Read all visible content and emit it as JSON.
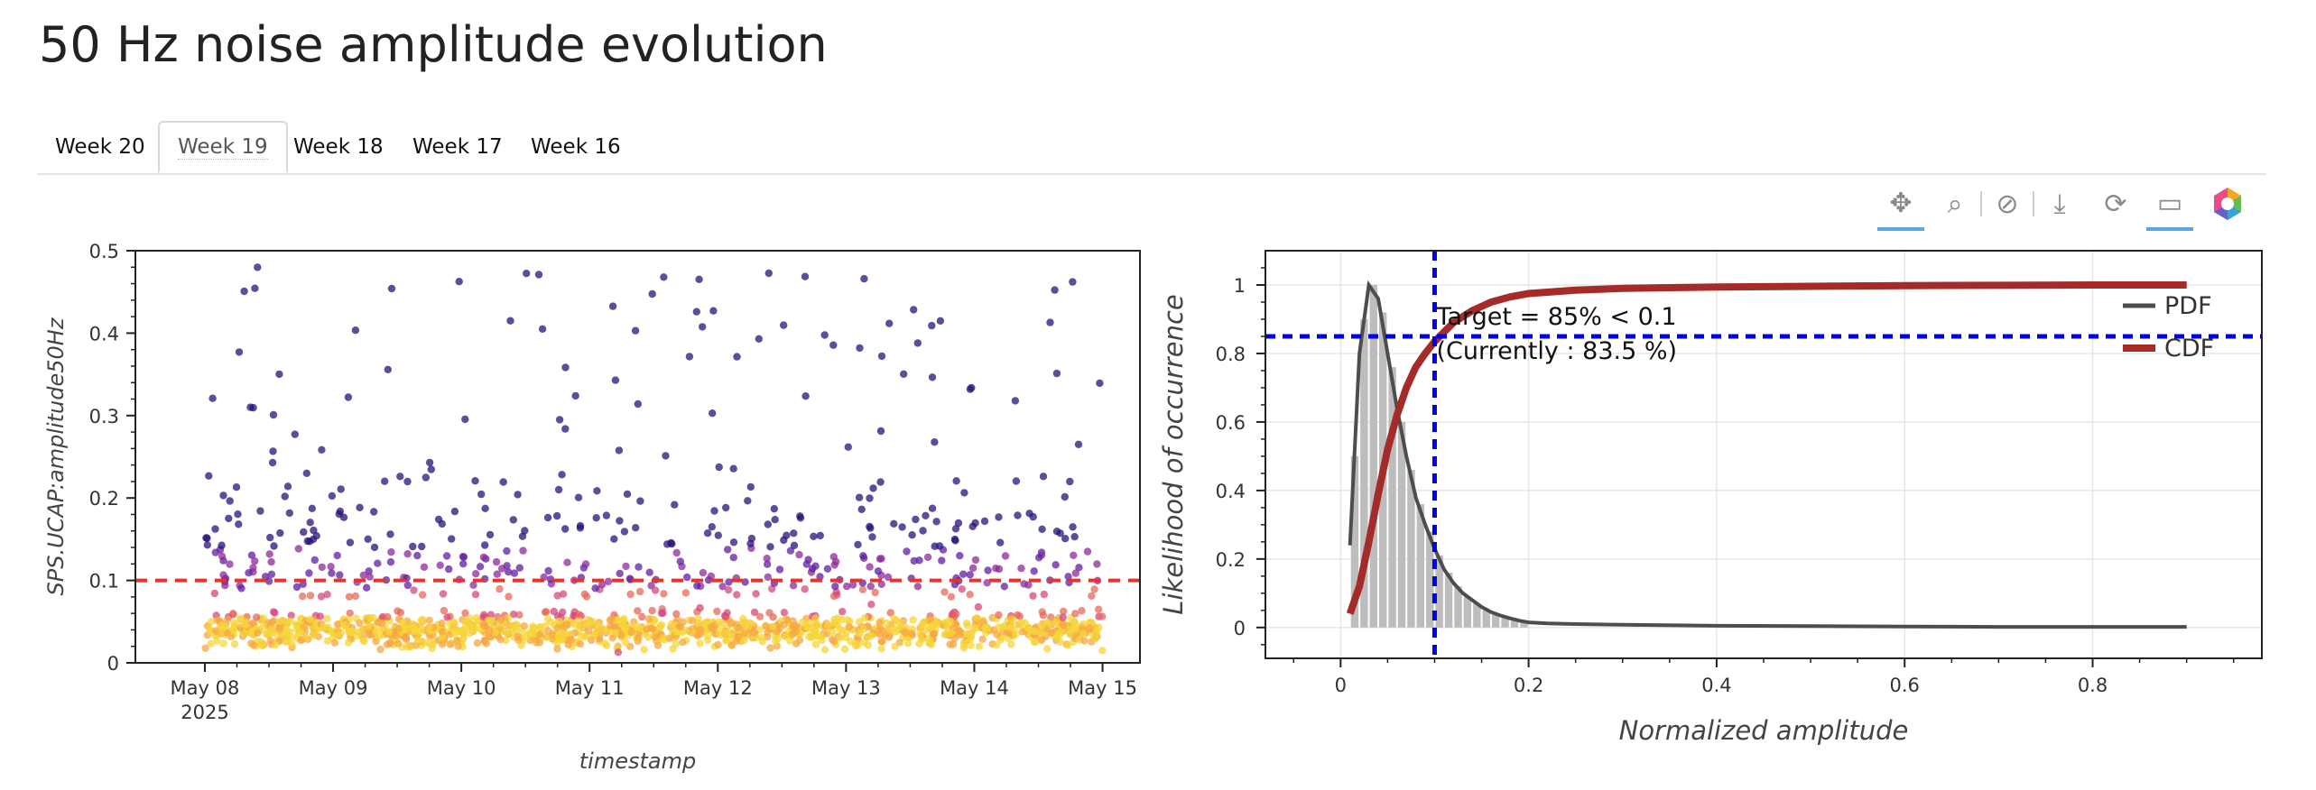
{
  "page": {
    "title": "50 Hz noise amplitude evolution"
  },
  "tabs": [
    {
      "label": "Week 20",
      "active": false
    },
    {
      "label": "Week 19",
      "active": true
    },
    {
      "label": "Week 18",
      "active": false
    },
    {
      "label": "Week 17",
      "active": false
    },
    {
      "label": "Week 16",
      "active": false
    }
  ],
  "toolbar": {
    "tools": [
      {
        "icon": "pan-icon",
        "glyph": "✥",
        "active": true
      },
      {
        "icon": "box-zoom-icon",
        "glyph": "⌕",
        "active": false
      },
      {
        "icon": "wheel-zoom-icon",
        "glyph": "⊘",
        "active": false
      },
      {
        "icon": "save-icon",
        "glyph": "⤓",
        "active": false
      },
      {
        "icon": "reset-icon",
        "glyph": "⟳",
        "active": false
      },
      {
        "icon": "hover-icon",
        "glyph": "▭",
        "active": true
      },
      {
        "icon": "bokeh-logo-icon",
        "glyph": "",
        "active": false
      }
    ]
  },
  "chart_data": [
    {
      "type": "scatter",
      "title": "",
      "xlabel": "timestamp",
      "ylabel": "SPS.UCAP:amplitude50Hz",
      "x_ticks": [
        "May 08",
        "May 09",
        "May 10",
        "May 11",
        "May 12",
        "May 13",
        "May 14",
        "May 15"
      ],
      "x_year_label": "2025",
      "x_range": [
        "2025-05-07T11:00",
        "2025-05-15T07:00"
      ],
      "data_x_range": [
        "2025-05-08T00:00",
        "2025-05-15T00:00"
      ],
      "ylim": [
        0,
        0.5
      ],
      "y_ticks": [
        "0",
        "0.1",
        "0.2",
        "0.3",
        "0.4",
        "0.5"
      ],
      "threshold": {
        "y": 0.1,
        "color": "#e3342f",
        "style": "dashed"
      },
      "colormap": "plasma",
      "bulk_level": 0.04,
      "colors": {
        "dense": "#f5d53a",
        "mid": "#d4487f",
        "sparse": "#2a1078"
      }
    },
    {
      "type": "line",
      "title": "",
      "xlabel": "Normalized amplitude",
      "ylabel": "Likelihood of occurrence",
      "xlim": [
        -0.08,
        0.98
      ],
      "ylim": [
        -0.09,
        1.1
      ],
      "x_ticks": [
        "0",
        "0.2",
        "0.4",
        "0.6",
        "0.8"
      ],
      "y_ticks": [
        "0",
        "0.2",
        "0.4",
        "0.6",
        "0.8",
        "1"
      ],
      "series": [
        {
          "name": "PDF",
          "color": "#4d4d4d",
          "x": [
            0.01,
            0.02,
            0.03,
            0.04,
            0.05,
            0.06,
            0.07,
            0.08,
            0.09,
            0.1,
            0.11,
            0.12,
            0.13,
            0.14,
            0.15,
            0.16,
            0.17,
            0.18,
            0.19,
            0.2,
            0.22,
            0.25,
            0.3,
            0.4,
            0.5,
            0.6,
            0.7,
            0.8,
            0.9
          ],
          "y": [
            0.24,
            0.8,
            1.0,
            0.96,
            0.8,
            0.64,
            0.5,
            0.38,
            0.3,
            0.23,
            0.17,
            0.13,
            0.1,
            0.08,
            0.06,
            0.045,
            0.035,
            0.027,
            0.02,
            0.015,
            0.012,
            0.01,
            0.008,
            0.005,
            0.004,
            0.003,
            0.002,
            0.002,
            0.002
          ]
        },
        {
          "name": "CDF",
          "color": "#a52a2a",
          "x": [
            0.01,
            0.02,
            0.03,
            0.04,
            0.05,
            0.06,
            0.07,
            0.08,
            0.09,
            0.1,
            0.12,
            0.14,
            0.16,
            0.18,
            0.2,
            0.25,
            0.3,
            0.4,
            0.5,
            0.6,
            0.7,
            0.8,
            0.9
          ],
          "y": [
            0.04,
            0.12,
            0.25,
            0.39,
            0.52,
            0.62,
            0.7,
            0.76,
            0.8,
            0.835,
            0.89,
            0.925,
            0.95,
            0.965,
            0.975,
            0.985,
            0.99,
            0.994,
            0.996,
            0.998,
            0.999,
            1.0,
            1.0
          ]
        }
      ],
      "histogram": {
        "color": "#bdbdbd",
        "x": [
          0.015,
          0.025,
          0.035,
          0.045,
          0.055,
          0.065,
          0.075,
          0.085,
          0.095,
          0.105,
          0.115,
          0.125,
          0.135,
          0.145,
          0.155,
          0.165,
          0.175,
          0.185,
          0.195
        ],
        "y": [
          0.5,
          0.9,
          1.0,
          0.92,
          0.76,
          0.6,
          0.46,
          0.36,
          0.28,
          0.21,
          0.16,
          0.12,
          0.09,
          0.07,
          0.05,
          0.04,
          0.03,
          0.02,
          0.015
        ]
      },
      "target_lines": {
        "x": 0.1,
        "y": 0.85,
        "color": "#0000ee"
      },
      "annotation": [
        "Target = 85% < 0.1",
        "(Currently : 83.5 %)"
      ],
      "legend_position": "top-right"
    }
  ]
}
